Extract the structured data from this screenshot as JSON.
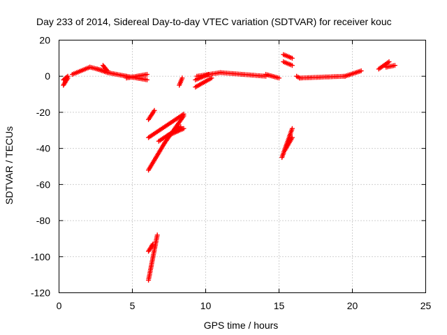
{
  "chart_data": {
    "type": "scatter",
    "title": "Day 233 of 2014, Sidereal Day-to-day VTEC variation (SDTVAR) for receiver kouc",
    "xlabel": "GPS time / hours",
    "ylabel": "SDTVAR / TECUs",
    "xlim": [
      0,
      25
    ],
    "ylim": [
      -120,
      20
    ],
    "xticks": [
      "0",
      "5",
      "10",
      "15",
      "20",
      "25"
    ],
    "yticks": [
      "20",
      "0",
      "-20",
      "-40",
      "-60",
      "-80",
      "-100",
      "-120"
    ],
    "grid": true,
    "marker": "plus",
    "color": "#ff0000",
    "segments": [
      {
        "x0": 0.3,
        "y0": -5,
        "x1": 0.6,
        "y1": -1
      },
      {
        "x0": 0.3,
        "y0": -2,
        "x1": 0.6,
        "y1": 0
      },
      {
        "x0": 0.9,
        "y0": 1,
        "x1": 2.1,
        "y1": 5
      },
      {
        "x0": 2.1,
        "y0": 5,
        "x1": 3.1,
        "y1": 3
      },
      {
        "x0": 2.6,
        "y0": 4,
        "x1": 3.3,
        "y1": 2
      },
      {
        "x0": 3.0,
        "y0": 6,
        "x1": 3.3,
        "y1": 3
      },
      {
        "x0": 3.3,
        "y0": 2,
        "x1": 4.6,
        "y1": 0
      },
      {
        "x0": 4.6,
        "y0": 0,
        "x1": 6.0,
        "y1": -2
      },
      {
        "x0": 4.6,
        "y0": -1,
        "x1": 6.0,
        "y1": 1
      },
      {
        "x0": 6.1,
        "y0": -24,
        "x1": 6.5,
        "y1": -19
      },
      {
        "x0": 6.1,
        "y0": -34,
        "x1": 8.5,
        "y1": -21
      },
      {
        "x0": 6.1,
        "y0": -52,
        "x1": 7.2,
        "y1": -37
      },
      {
        "x0": 7.2,
        "y0": -37,
        "x1": 8.5,
        "y1": -22
      },
      {
        "x0": 6.8,
        "y0": -36,
        "x1": 8.3,
        "y1": -28
      },
      {
        "x0": 7.4,
        "y0": -33,
        "x1": 8.5,
        "y1": -29
      },
      {
        "x0": 6.1,
        "y0": -113,
        "x1": 6.7,
        "y1": -88
      },
      {
        "x0": 6.1,
        "y0": -97,
        "x1": 6.4,
        "y1": -93
      },
      {
        "x0": 8.2,
        "y0": -5,
        "x1": 8.4,
        "y1": -1
      },
      {
        "x0": 9.3,
        "y0": -6,
        "x1": 10.4,
        "y1": -1
      },
      {
        "x0": 9.3,
        "y0": -2,
        "x1": 10.2,
        "y1": 1
      },
      {
        "x0": 9.4,
        "y0": 0,
        "x1": 11.0,
        "y1": 2
      },
      {
        "x0": 11.0,
        "y0": 2,
        "x1": 14.1,
        "y1": 0
      },
      {
        "x0": 14.1,
        "y0": 1,
        "x1": 15.0,
        "y1": -1
      },
      {
        "x0": 15.2,
        "y0": -45,
        "x1": 15.9,
        "y1": -29
      },
      {
        "x0": 15.4,
        "y0": -41,
        "x1": 15.9,
        "y1": -34
      },
      {
        "x0": 15.3,
        "y0": 12,
        "x1": 15.9,
        "y1": 10
      },
      {
        "x0": 15.3,
        "y0": 8,
        "x1": 15.9,
        "y1": 6
      },
      {
        "x0": 16.2,
        "y0": 0,
        "x1": 16.4,
        "y1": -1
      },
      {
        "x0": 16.4,
        "y0": -1,
        "x1": 19.5,
        "y1": 0
      },
      {
        "x0": 19.5,
        "y0": 0,
        "x1": 20.6,
        "y1": 3
      },
      {
        "x0": 21.8,
        "y0": 4,
        "x1": 22.5,
        "y1": 8
      },
      {
        "x0": 22.3,
        "y0": 5,
        "x1": 22.9,
        "y1": 6
      }
    ]
  }
}
